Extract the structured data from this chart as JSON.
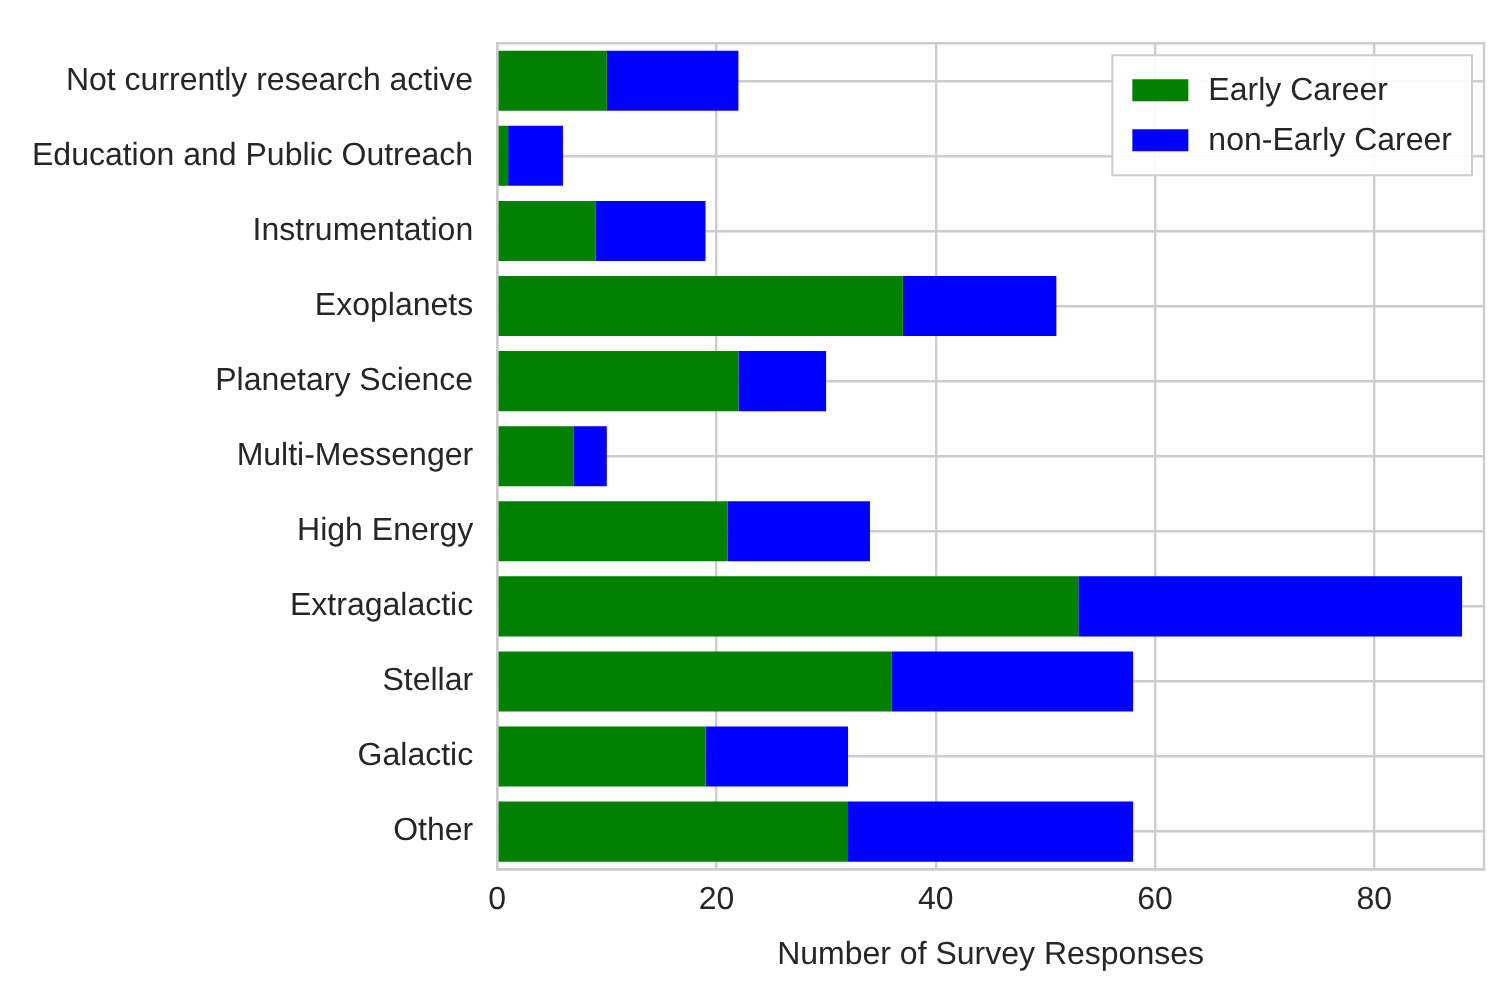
{
  "chart_data": {
    "type": "bar",
    "orientation": "horizontal",
    "stacked": true,
    "xlabel": "Number of Survey Responses",
    "categories": [
      "Not currently research active",
      "Education and Public Outreach",
      "Instrumentation",
      "Exoplanets",
      "Planetary Science",
      "Multi-Messenger",
      "High Energy",
      "Extragalactic",
      "Stellar",
      "Galactic",
      "Other"
    ],
    "series": [
      {
        "name": "Early Career",
        "color": "#008000",
        "values": [
          10,
          1,
          9,
          37,
          22,
          7,
          21,
          53,
          36,
          19,
          32
        ]
      },
      {
        "name": "non-Early Career",
        "color": "#0000ff",
        "values": [
          12,
          5,
          10,
          14,
          8,
          3,
          13,
          35,
          22,
          13,
          26
        ]
      }
    ],
    "xlim": [
      0,
      90
    ],
    "xticks": [
      0,
      20,
      40,
      60,
      80
    ],
    "grid": true,
    "legend": "top right"
  }
}
